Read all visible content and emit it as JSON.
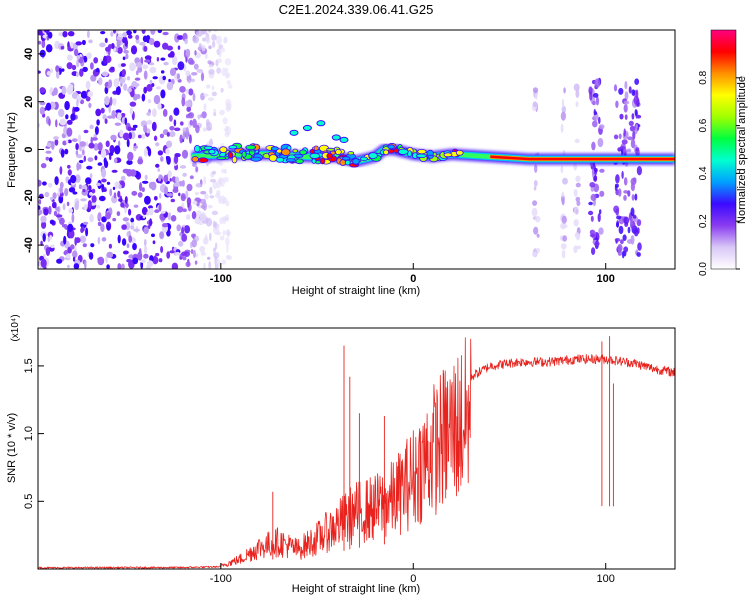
{
  "figure": {
    "title": "C2E1.2024.339.06.41.G25"
  },
  "chart_data": [
    {
      "type": "heatmap",
      "title": "C2E1.2024.339.06.41.G25",
      "xlabel": "Height of straight line (km)",
      "ylabel": "Frequency (Hz)",
      "xlim": [
        -195,
        136
      ],
      "ylim": [
        -50,
        50
      ],
      "x_ticks": [
        -100,
        0,
        100
      ],
      "y_ticks": [
        -40,
        -20,
        0,
        20,
        40
      ],
      "colorbar": {
        "label": "Normalized spectral amplitude",
        "range": [
          0,
          1
        ],
        "ticks": [
          0.0,
          0.2,
          0.4,
          0.6,
          0.8
        ],
        "colors": [
          "#ffffff",
          "#d9c8f7",
          "#8a3cf0",
          "#3b0aff",
          "#00a0ff",
          "#00ffd0",
          "#00ff40",
          "#a0ff00",
          "#ffff00",
          "#ff9000",
          "#ff0000",
          "#ff0080"
        ]
      },
      "features": {
        "noise_band_x": [
          -195,
          -105
        ],
        "ridge": [
          {
            "x": -115,
            "y": -3
          },
          {
            "x": -95,
            "y": -2
          },
          {
            "x": -75,
            "y": -2
          },
          {
            "x": -55,
            "y": -3
          },
          {
            "x": -40,
            "y": -3
          },
          {
            "x": -30,
            "y": -5
          },
          {
            "x": -20,
            "y": -3
          },
          {
            "x": -15,
            "y": 0
          },
          {
            "x": -10,
            "y": 0
          },
          {
            "x": 0,
            "y": -2
          },
          {
            "x": 10,
            "y": -3
          },
          {
            "x": 20,
            "y": -2
          },
          {
            "x": 40,
            "y": -3
          },
          {
            "x": 60,
            "y": -4
          },
          {
            "x": 80,
            "y": -4
          },
          {
            "x": 100,
            "y": -4
          },
          {
            "x": 120,
            "y": -4
          },
          {
            "x": 136,
            "y": -4
          }
        ],
        "vertical_streaks_x": [
          64,
          78,
          85,
          95,
          108,
          115
        ]
      }
    },
    {
      "type": "line",
      "xlabel": "Height of straight line (km)",
      "ylabel": "SNR (10 * v/v)",
      "ylabel_multiplier": "(x10⁴)",
      "xlim": [
        -195,
        136
      ],
      "ylim": [
        0,
        17800
      ],
      "x_ticks": [
        -100,
        0,
        100
      ],
      "y_ticks": [
        5000,
        10000,
        15000
      ],
      "y_tick_labels": [
        "0.5",
        "1.0",
        "1.5"
      ],
      "series": [
        {
          "color": "#e8231e",
          "envelope": [
            {
              "x": -195,
              "y": 100
            },
            {
              "x": -120,
              "y": 150
            },
            {
              "x": -100,
              "y": 300
            },
            {
              "x": -90,
              "y": 900
            },
            {
              "x": -80,
              "y": 2000
            },
            {
              "x": -70,
              "y": 2500
            },
            {
              "x": -60,
              "y": 1800
            },
            {
              "x": -50,
              "y": 2800
            },
            {
              "x": -40,
              "y": 4000
            },
            {
              "x": -30,
              "y": 5200
            },
            {
              "x": -20,
              "y": 5600
            },
            {
              "x": -10,
              "y": 6500
            },
            {
              "x": 0,
              "y": 8500
            },
            {
              "x": 10,
              "y": 11000
            },
            {
              "x": 20,
              "y": 12800
            },
            {
              "x": 30,
              "y": 14200
            },
            {
              "x": 40,
              "y": 15000
            },
            {
              "x": 55,
              "y": 15300
            },
            {
              "x": 70,
              "y": 15300
            },
            {
              "x": 85,
              "y": 15500
            },
            {
              "x": 100,
              "y": 15500
            },
            {
              "x": 115,
              "y": 15200
            },
            {
              "x": 125,
              "y": 14800
            },
            {
              "x": 136,
              "y": 14500
            }
          ],
          "spikes": [
            {
              "x": -36,
              "y": 16500
            },
            {
              "x": -33,
              "y": 14200
            },
            {
              "x": -73,
              "y": 5700
            },
            {
              "x": -28,
              "y": 11500
            },
            {
              "x": -15,
              "y": 11300
            },
            {
              "x": 98,
              "y": 16800
            },
            {
              "x": 102,
              "y": 17200
            },
            {
              "x": 104,
              "y": 13700
            }
          ]
        }
      ]
    }
  ]
}
